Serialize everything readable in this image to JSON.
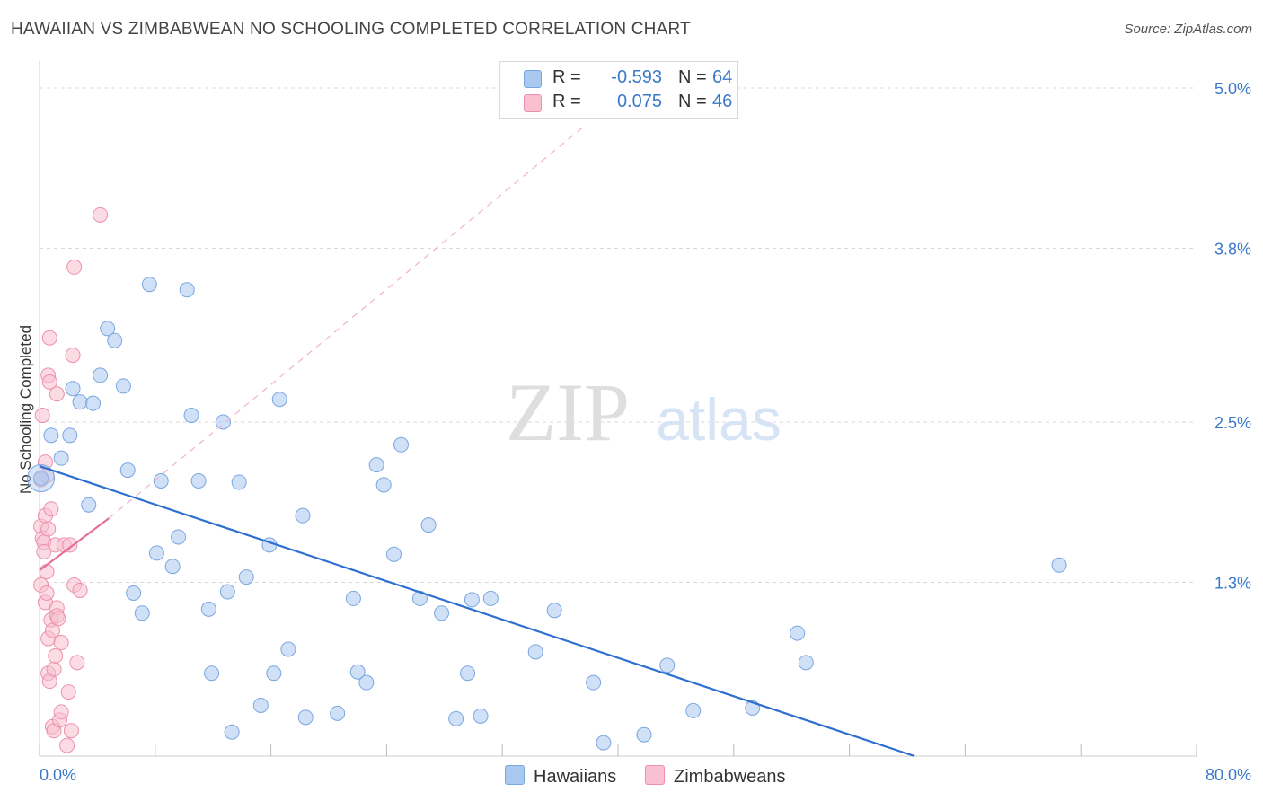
{
  "header": {
    "title": "HAWAIIAN VS ZIMBABWEAN NO SCHOOLING COMPLETED CORRELATION CHART",
    "source": "Source: ZipAtlas.com"
  },
  "legend": {
    "rows": [
      {
        "r_label": "R =",
        "r_value": "-0.593",
        "n_label": "N =",
        "n_value": "64",
        "color": "#a9c8f0",
        "border": "#7aa6e0"
      },
      {
        "r_label": "R =",
        "r_value": "0.075",
        "n_label": "N =",
        "n_value": "46",
        "color": "#f8c0d0",
        "border": "#ee90ad"
      }
    ]
  },
  "bottom_legend": {
    "items": [
      {
        "label": "Hawaiians",
        "color": "#a9c8f0",
        "border": "#7aa6e0"
      },
      {
        "label": "Zimbabweans",
        "color": "#f8c0d0",
        "border": "#ee90ad"
      }
    ]
  },
  "watermark": {
    "zip": "ZIP",
    "atlas": "atlas"
  },
  "chart_data": {
    "type": "scatter",
    "title": "HAWAIIAN VS ZIMBABWEAN NO SCHOOLING COMPLETED CORRELATION CHART",
    "xlabel": "",
    "ylabel": "No Schooling Completed",
    "xlim": [
      0,
      80
    ],
    "ylim": [
      0,
      5.0
    ],
    "x_tick_labels": [
      "0.0%",
      "80.0%"
    ],
    "y_ticks": [
      1.3,
      2.5,
      3.8,
      5.0
    ],
    "y_tick_labels": [
      "1.3%",
      "2.5%",
      "3.8%",
      "5.0%"
    ],
    "grid": true,
    "series": [
      {
        "name": "Hawaiians",
        "color": "#a9c8f0",
        "stroke": "#7aa6e0",
        "trend_color": "#2f6fd0",
        "trend": {
          "x": [
            0,
            60.5
          ],
          "y": [
            2.17,
            0.0
          ]
        },
        "points": [
          [
            0.1,
            2.08
          ],
          [
            0.8,
            2.4
          ],
          [
            1.5,
            2.23
          ],
          [
            2.1,
            2.4
          ],
          [
            2.3,
            2.75
          ],
          [
            2.8,
            2.65
          ],
          [
            3.4,
            1.88
          ],
          [
            3.7,
            2.64
          ],
          [
            4.2,
            2.85
          ],
          [
            4.7,
            3.2
          ],
          [
            5.2,
            3.11
          ],
          [
            5.8,
            2.77
          ],
          [
            6.1,
            2.14
          ],
          [
            6.5,
            1.22
          ],
          [
            7.1,
            1.07
          ],
          [
            7.6,
            3.53
          ],
          [
            8.1,
            1.52
          ],
          [
            8.4,
            2.06
          ],
          [
            9.2,
            1.42
          ],
          [
            9.6,
            1.64
          ],
          [
            10.2,
            3.49
          ],
          [
            10.5,
            2.55
          ],
          [
            11.0,
            2.06
          ],
          [
            11.7,
            1.1
          ],
          [
            11.9,
            0.62
          ],
          [
            12.7,
            2.5
          ],
          [
            13.0,
            1.23
          ],
          [
            13.3,
            0.18
          ],
          [
            13.8,
            2.05
          ],
          [
            14.3,
            1.34
          ],
          [
            15.3,
            0.38
          ],
          [
            15.9,
            1.58
          ],
          [
            16.2,
            0.62
          ],
          [
            16.6,
            2.67
          ],
          [
            17.2,
            0.8
          ],
          [
            18.2,
            1.8
          ],
          [
            18.4,
            0.29
          ],
          [
            20.6,
            0.32
          ],
          [
            21.7,
            1.18
          ],
          [
            22.0,
            0.63
          ],
          [
            22.6,
            0.55
          ],
          [
            23.3,
            2.18
          ],
          [
            23.8,
            2.03
          ],
          [
            24.5,
            1.51
          ],
          [
            25.0,
            2.33
          ],
          [
            26.3,
            1.18
          ],
          [
            26.9,
            1.73
          ],
          [
            27.8,
            1.07
          ],
          [
            28.8,
            0.28
          ],
          [
            29.6,
            0.62
          ],
          [
            29.9,
            1.17
          ],
          [
            30.5,
            0.3
          ],
          [
            31.2,
            1.18
          ],
          [
            34.3,
            0.78
          ],
          [
            35.6,
            1.09
          ],
          [
            38.3,
            0.55
          ],
          [
            39.0,
            0.1
          ],
          [
            41.8,
            0.16
          ],
          [
            43.4,
            0.68
          ],
          [
            45.2,
            0.34
          ],
          [
            49.3,
            0.36
          ],
          [
            52.4,
            0.92
          ],
          [
            53.0,
            0.7
          ],
          [
            70.5,
            1.43
          ]
        ]
      },
      {
        "name": "Zimbabweans",
        "color": "#f8c0d0",
        "stroke": "#ee90ad",
        "trend_color": "#e56f96",
        "trend": {
          "x": [
            0,
            4.8
          ],
          "y": [
            1.39,
            1.78
          ]
        },
        "trend_ext": {
          "x": [
            4.8,
            37.5
          ],
          "y": [
            1.78,
            4.7
          ]
        },
        "points": [
          [
            0.1,
            2.07
          ],
          [
            0.1,
            1.72
          ],
          [
            0.1,
            1.28
          ],
          [
            0.2,
            2.55
          ],
          [
            0.2,
            1.63
          ],
          [
            0.3,
            1.6
          ],
          [
            0.3,
            1.53
          ],
          [
            0.4,
            2.2
          ],
          [
            0.4,
            1.8
          ],
          [
            0.4,
            1.15
          ],
          [
            0.5,
            2.1
          ],
          [
            0.5,
            1.38
          ],
          [
            0.5,
            1.22
          ],
          [
            0.6,
            2.85
          ],
          [
            0.6,
            1.7
          ],
          [
            0.6,
            0.88
          ],
          [
            0.6,
            0.62
          ],
          [
            0.7,
            3.13
          ],
          [
            0.7,
            2.8
          ],
          [
            0.7,
            0.56
          ],
          [
            0.8,
            1.85
          ],
          [
            0.8,
            1.02
          ],
          [
            0.9,
            0.94
          ],
          [
            0.9,
            0.22
          ],
          [
            1.0,
            0.65
          ],
          [
            1.0,
            0.19
          ],
          [
            1.1,
            1.58
          ],
          [
            1.1,
            0.75
          ],
          [
            1.2,
            2.71
          ],
          [
            1.2,
            1.11
          ],
          [
            1.2,
            1.05
          ],
          [
            1.3,
            1.03
          ],
          [
            1.4,
            0.27
          ],
          [
            1.5,
            0.85
          ],
          [
            1.5,
            0.33
          ],
          [
            1.7,
            1.58
          ],
          [
            1.9,
            0.08
          ],
          [
            2.0,
            0.48
          ],
          [
            2.1,
            1.58
          ],
          [
            2.2,
            0.19
          ],
          [
            2.3,
            3.0
          ],
          [
            2.4,
            3.66
          ],
          [
            2.4,
            1.28
          ],
          [
            2.6,
            0.7
          ],
          [
            2.8,
            1.24
          ],
          [
            4.2,
            4.05
          ]
        ]
      }
    ]
  }
}
